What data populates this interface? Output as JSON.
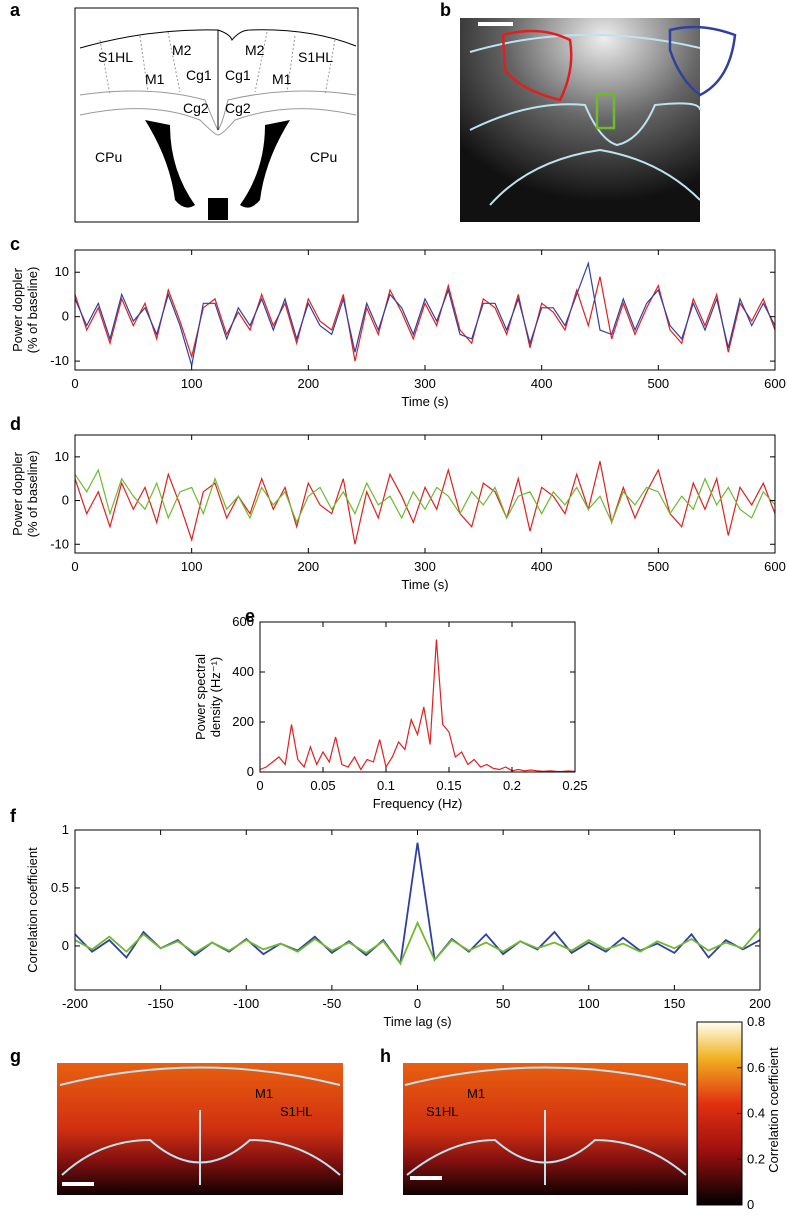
{
  "panel_labels": [
    "a",
    "b",
    "c",
    "d",
    "e",
    "f",
    "g",
    "h"
  ],
  "atlas": {
    "labels": [
      "S1HL",
      "M2",
      "M1",
      "Cg1",
      "Cg1",
      "M2",
      "M1",
      "S1HL",
      "Cg2",
      "Cg2",
      "CPu",
      "CPu"
    ]
  },
  "maps": {
    "g": [
      "M1",
      "S1HL"
    ],
    "h": [
      "M1",
      "S1HL"
    ]
  },
  "colorbar": {
    "label": "Correlation coefficient",
    "lim": [
      0,
      0.8
    ],
    "ticks": [
      0,
      0.2,
      0.4,
      0.6,
      0.8
    ]
  },
  "chart_data": [
    {
      "type": "line",
      "xlabel": "Time (s)",
      "ylabel": [
        "Power doppler",
        "(% of baseline)"
      ],
      "xlim": [
        0,
        600
      ],
      "xticks": [
        0,
        100,
        200,
        300,
        400,
        500,
        600
      ],
      "ylim": [
        -12,
        15
      ],
      "yticks": [
        -10,
        0,
        10
      ],
      "x": [
        0,
        10,
        20,
        30,
        40,
        50,
        60,
        70,
        80,
        90,
        100,
        110,
        120,
        130,
        140,
        150,
        160,
        170,
        180,
        190,
        200,
        210,
        220,
        230,
        240,
        250,
        260,
        270,
        280,
        290,
        300,
        310,
        320,
        330,
        340,
        350,
        360,
        370,
        380,
        390,
        400,
        410,
        420,
        430,
        440,
        450,
        460,
        470,
        480,
        490,
        500,
        510,
        520,
        530,
        540,
        550,
        560,
        570,
        580,
        590,
        600
      ],
      "series": [
        {
          "color": "#e02020",
          "values": [
            5,
            -3,
            2,
            -6,
            4,
            -2,
            3,
            -5,
            6,
            -1,
            -9,
            2,
            4,
            -4,
            1,
            -3,
            5,
            -2,
            3,
            -6,
            4,
            -1,
            -3,
            5,
            -10,
            2,
            -4,
            6,
            1,
            -5,
            3,
            -2,
            7,
            -3,
            -6,
            4,
            2,
            -4,
            5,
            -7,
            3,
            1,
            -3,
            6,
            -2,
            9,
            -5,
            3,
            -4,
            2,
            7,
            -3,
            -6,
            4,
            -2,
            5,
            -8,
            3,
            -1,
            4,
            -3
          ]
        },
        {
          "color": "#3040a0",
          "values": [
            4,
            -2,
            3,
            -5,
            5,
            -1,
            2,
            -4,
            5,
            -2,
            -11,
            3,
            3,
            -5,
            2,
            -2,
            4,
            -3,
            4,
            -5,
            3,
            -2,
            -4,
            4,
            -8,
            3,
            -3,
            5,
            2,
            -4,
            4,
            -1,
            6,
            -4,
            -5,
            3,
            3,
            -3,
            4,
            -6,
            2,
            2,
            -2,
            5,
            12,
            -3,
            -4,
            4,
            -3,
            3,
            6,
            -2,
            -5,
            3,
            -3,
            4,
            -7,
            4,
            -2,
            3,
            -2
          ]
        }
      ]
    },
    {
      "type": "line",
      "xlabel": "Time (s)",
      "ylabel": [
        "Power doppler",
        "(% of baseline)"
      ],
      "xlim": [
        0,
        600
      ],
      "xticks": [
        0,
        100,
        200,
        300,
        400,
        500,
        600
      ],
      "ylim": [
        -12,
        15
      ],
      "yticks": [
        -10,
        0,
        10
      ],
      "x": [
        0,
        10,
        20,
        30,
        40,
        50,
        60,
        70,
        80,
        90,
        100,
        110,
        120,
        130,
        140,
        150,
        160,
        170,
        180,
        190,
        200,
        210,
        220,
        230,
        240,
        250,
        260,
        270,
        280,
        290,
        300,
        310,
        320,
        330,
        340,
        350,
        360,
        370,
        380,
        390,
        400,
        410,
        420,
        430,
        440,
        450,
        460,
        470,
        480,
        490,
        500,
        510,
        520,
        530,
        540,
        550,
        560,
        570,
        580,
        590,
        600
      ],
      "series": [
        {
          "color": "#e02020",
          "values": [
            5,
            -3,
            2,
            -6,
            4,
            -2,
            3,
            -5,
            6,
            -1,
            -9,
            2,
            4,
            -4,
            1,
            -3,
            5,
            -2,
            3,
            -6,
            4,
            -1,
            -3,
            5,
            -10,
            2,
            -4,
            6,
            1,
            -5,
            3,
            -2,
            7,
            -3,
            -6,
            4,
            2,
            -4,
            5,
            -7,
            3,
            1,
            -3,
            6,
            -2,
            9,
            -5,
            3,
            -4,
            2,
            7,
            -3,
            -6,
            4,
            -2,
            5,
            -8,
            3,
            -1,
            4,
            -3
          ]
        },
        {
          "color": "#70b830",
          "values": [
            6,
            2,
            7,
            -3,
            5,
            1,
            -2,
            4,
            -4,
            2,
            3,
            -3,
            5,
            -2,
            1,
            -4,
            3,
            -1,
            2,
            -5,
            1,
            3,
            -2,
            2,
            -3,
            4,
            -1,
            1,
            -4,
            2,
            -2,
            3,
            1,
            -3,
            2,
            -1,
            3,
            -4,
            1,
            2,
            -3,
            2,
            -1,
            3,
            -2,
            1,
            -5,
            2,
            -1,
            3,
            2,
            -3,
            1,
            -2,
            5,
            -1,
            3,
            -2,
            -4,
            2,
            -1
          ]
        }
      ]
    },
    {
      "type": "line",
      "xlabel": "Frequency (Hz)",
      "ylabel": [
        "Power spectral",
        "density (Hz⁻¹)"
      ],
      "xlim": [
        0,
        0.25
      ],
      "xticks": [
        0,
        0.05,
        0.1,
        0.15,
        0.2,
        0.25
      ],
      "ylim": [
        0,
        600
      ],
      "yticks": [
        0,
        200,
        400,
        600
      ],
      "x": [
        0,
        0.005,
        0.01,
        0.015,
        0.02,
        0.025,
        0.03,
        0.035,
        0.04,
        0.045,
        0.05,
        0.055,
        0.06,
        0.065,
        0.07,
        0.075,
        0.08,
        0.085,
        0.09,
        0.095,
        0.1,
        0.105,
        0.11,
        0.115,
        0.12,
        0.125,
        0.13,
        0.135,
        0.14,
        0.145,
        0.15,
        0.155,
        0.16,
        0.165,
        0.17,
        0.175,
        0.18,
        0.185,
        0.19,
        0.195,
        0.2,
        0.205,
        0.21,
        0.215,
        0.22,
        0.225,
        0.23,
        0.235,
        0.24,
        0.245,
        0.25
      ],
      "series": [
        {
          "color": "#e02020",
          "values": [
            10,
            20,
            40,
            60,
            30,
            190,
            50,
            20,
            100,
            30,
            80,
            40,
            140,
            30,
            20,
            60,
            10,
            50,
            40,
            130,
            20,
            60,
            120,
            90,
            210,
            150,
            260,
            110,
            530,
            190,
            160,
            60,
            80,
            30,
            50,
            20,
            30,
            15,
            10,
            20,
            5,
            10,
            5,
            8,
            5,
            3,
            5,
            3,
            2,
            4,
            2
          ]
        }
      ]
    },
    {
      "type": "line",
      "xlabel": "Time lag (s)",
      "ylabel": [
        "Correlation coefficient"
      ],
      "xlim": [
        -200,
        200
      ],
      "xticks": [
        -200,
        -150,
        -100,
        -50,
        0,
        50,
        100,
        150,
        200
      ],
      "ylim": [
        -0.38,
        1
      ],
      "yticks": [
        0,
        0.5,
        1
      ],
      "x": [
        -200,
        -190,
        -180,
        -170,
        -160,
        -150,
        -140,
        -130,
        -120,
        -110,
        -100,
        -90,
        -80,
        -70,
        -60,
        -50,
        -40,
        -30,
        -20,
        -10,
        0,
        10,
        20,
        30,
        40,
        50,
        60,
        70,
        80,
        90,
        100,
        110,
        120,
        130,
        140,
        150,
        160,
        170,
        180,
        190,
        200
      ],
      "series": [
        {
          "color": "#3040a0",
          "values": [
            0.1,
            -0.05,
            0.05,
            -0.1,
            0.12,
            -0.02,
            0.05,
            -0.08,
            0.03,
            -0.05,
            0.06,
            -0.07,
            0.02,
            -0.04,
            0.08,
            -0.06,
            0.04,
            -0.08,
            0.05,
            -0.15,
            0.89,
            -0.12,
            0.06,
            -0.05,
            0.1,
            -0.07,
            0.04,
            -0.03,
            0.12,
            -0.06,
            0.03,
            -0.05,
            0.07,
            -0.04,
            0.02,
            -0.06,
            0.1,
            -0.1,
            0.05,
            -0.03,
            0.05
          ]
        },
        {
          "color": "#70b830",
          "values": [
            0.05,
            -0.03,
            0.08,
            -0.05,
            0.1,
            -0.02,
            0.04,
            -0.06,
            0.03,
            -0.04,
            0.05,
            -0.03,
            0.02,
            -0.05,
            0.06,
            -0.04,
            0.03,
            -0.06,
            0.04,
            -0.15,
            0.2,
            -0.12,
            0.05,
            -0.04,
            0.03,
            -0.05,
            0.04,
            -0.02,
            0.03,
            -0.04,
            0.05,
            -0.03,
            0.02,
            -0.05,
            0.04,
            -0.02,
            0.06,
            -0.04,
            0.03,
            -0.02,
            0.15
          ]
        }
      ]
    }
  ]
}
